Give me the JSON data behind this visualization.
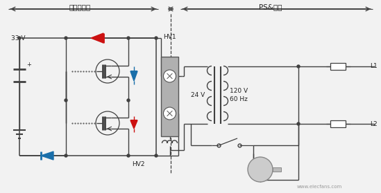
{
  "bg_color": "#f2f2f2",
  "title_gu_tai": "固态继电器",
  "title_ps": "PS&负荷",
  "label_33v": "33 V",
  "label_hv1": "HV1",
  "label_hv2": "HV2",
  "label_24v": "24 V",
  "label_120v": "120 V",
  "label_60hz": "60 Hz",
  "label_l1": "L1",
  "label_l2": "L2",
  "label_plus": "+",
  "watermark": "www.elecfans.com",
  "line_color": "#404040",
  "red_color": "#cc1111",
  "blue_color": "#1a6faa",
  "teal_color": "#1a6faa",
  "gray_relay": "#aaaaaa",
  "text_color": "#222222"
}
